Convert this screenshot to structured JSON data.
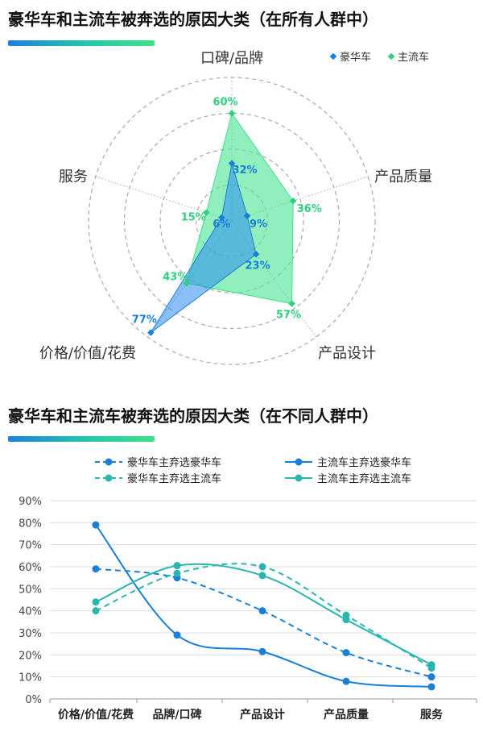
{
  "colors": {
    "luxury": "#1a7fd6",
    "mainstream": "#3ee08a",
    "mainstream_fill": "#56e69a",
    "luxury_fill": "#2a8cf0",
    "teal_line": "#2ab5ad",
    "blue_line": "#1a7fd6",
    "grid": "#dddddd",
    "ring": "#aaaaaa"
  },
  "radar": {
    "title": "豪华车和主流车被奔选的原因大类（在所有人群中）"
  },
  "line": {
    "title": "豪华车和主流车被奔选的原因大类（在不同人群中）"
  },
  "chart_data": [
    {
      "type": "radar",
      "title": "豪华车和主流车被奔选的原因大类（在所有人群中）",
      "categories": [
        "口碑/品牌",
        "产品质量",
        "产品设计",
        "价格/价值/花费",
        "服务"
      ],
      "series": [
        {
          "name": "豪华车",
          "values": [
            32,
            9,
            23,
            77,
            6
          ],
          "labels": [
            "32%",
            "9%",
            "23%",
            "77%",
            "6%"
          ]
        },
        {
          "name": "主流车",
          "values": [
            60,
            36,
            57,
            43,
            15
          ],
          "labels": [
            "60%",
            "36%",
            "57%",
            "43%",
            "15%"
          ]
        }
      ],
      "legend": "top-right",
      "range": [
        0,
        80
      ]
    },
    {
      "type": "line",
      "title": "豪华车和主流车被奔选的原因大类（在不同人群中）",
      "categories": [
        "价格/价值/花费",
        "品牌/口碑",
        "产品设计",
        "产品质量",
        "服务"
      ],
      "series": [
        {
          "name": "豪华车主弃选豪华车",
          "style": "dashed",
          "color": "blue",
          "values": [
            59,
            55,
            40,
            21,
            10
          ]
        },
        {
          "name": "主流车主弃选豪华车",
          "style": "solid",
          "color": "blue",
          "values": [
            79,
            29,
            21.5,
            8,
            5.5
          ]
        },
        {
          "name": "豪华车主弃选主流车",
          "style": "dashed",
          "color": "teal",
          "values": [
            40,
            57,
            60,
            38,
            14
          ]
        },
        {
          "name": "主流车主弃选主流车",
          "style": "solid",
          "color": "teal",
          "values": [
            44,
            60.5,
            56,
            36,
            15.5
          ]
        }
      ],
      "yticks": [
        "0%",
        "10%",
        "20%",
        "30%",
        "40%",
        "50%",
        "60%",
        "70%",
        "80%",
        "90%"
      ],
      "ylim": [
        0,
        90
      ],
      "grid": true,
      "legend": "top"
    }
  ]
}
